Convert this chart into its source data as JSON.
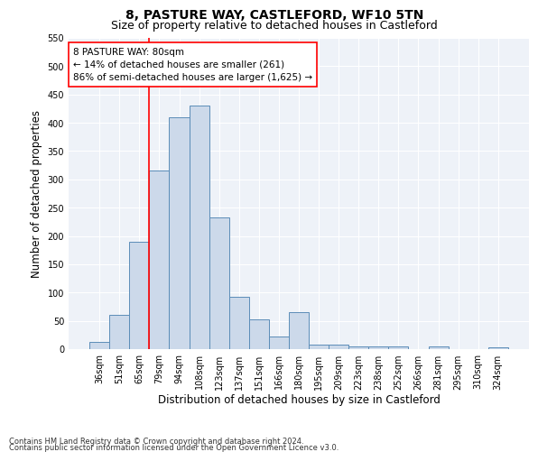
{
  "title": "8, PASTURE WAY, CASTLEFORD, WF10 5TN",
  "subtitle": "Size of property relative to detached houses in Castleford",
  "xlabel": "Distribution of detached houses by size in Castleford",
  "ylabel": "Number of detached properties",
  "categories": [
    "36sqm",
    "51sqm",
    "65sqm",
    "79sqm",
    "94sqm",
    "108sqm",
    "123sqm",
    "137sqm",
    "151sqm",
    "166sqm",
    "180sqm",
    "195sqm",
    "209sqm",
    "223sqm",
    "238sqm",
    "252sqm",
    "266sqm",
    "281sqm",
    "295sqm",
    "310sqm",
    "324sqm"
  ],
  "values": [
    12,
    60,
    190,
    315,
    410,
    430,
    233,
    93,
    53,
    22,
    65,
    8,
    8,
    5,
    4,
    4,
    0,
    4,
    0,
    0,
    3
  ],
  "bar_color": "#ccd9ea",
  "bar_edge_color": "#5b8db8",
  "highlight_x": "79sqm",
  "annotation_line1": "8 PASTURE WAY: 80sqm",
  "annotation_line2": "← 14% of detached houses are smaller (261)",
  "annotation_line3": "86% of semi-detached houses are larger (1,625) →",
  "annotation_box_color": "white",
  "annotation_box_edge_color": "red",
  "vline_color": "red",
  "ylim": [
    0,
    550
  ],
  "yticks": [
    0,
    50,
    100,
    150,
    200,
    250,
    300,
    350,
    400,
    450,
    500,
    550
  ],
  "footer_line1": "Contains HM Land Registry data © Crown copyright and database right 2024.",
  "footer_line2": "Contains public sector information licensed under the Open Government Licence v3.0.",
  "bg_color": "#ffffff",
  "axes_bg_color": "#eef2f8",
  "title_fontsize": 10,
  "subtitle_fontsize": 9,
  "tick_fontsize": 7,
  "label_fontsize": 8.5,
  "annotation_fontsize": 7.5,
  "footer_fontsize": 6
}
